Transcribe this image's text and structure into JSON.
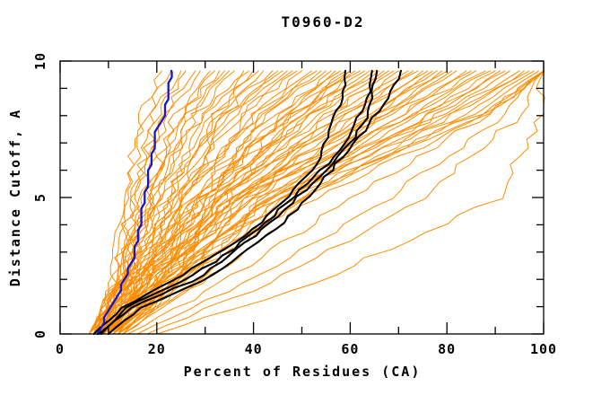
{
  "chart_data": {
    "type": "line",
    "title": "T0960-D2",
    "xlabel": "Percent of Residues (CA)",
    "ylabel": "Distance Cutoff, A",
    "xlim": [
      0,
      100
    ],
    "ylim": [
      0,
      10
    ],
    "x_major_ticks": [
      0,
      20,
      40,
      60,
      80,
      100
    ],
    "x_minor_ticks": [
      10,
      30,
      50,
      70,
      90
    ],
    "y_major_ticks": [
      0,
      5,
      10
    ],
    "y_minor_ticks": [
      1,
      2,
      3,
      4,
      6,
      7,
      8,
      9
    ],
    "grid": false,
    "legend": "none",
    "colors": {
      "model_orange": "#ff8c00",
      "reference_black": "#000000",
      "highlight_blue": "#1616cc",
      "axis": "#000000",
      "background": "#ffffff"
    },
    "curve_top_cutoff": 9.64,
    "orange_cutoffs": [
      0,
      2,
      5,
      8,
      9.64
    ],
    "orange_series": [
      [
        8,
        11,
        13,
        17,
        21
      ],
      [
        7,
        11,
        14,
        18,
        23
      ],
      [
        8,
        12,
        15,
        19,
        25
      ],
      [
        6,
        11,
        15,
        20,
        26
      ],
      [
        9,
        13,
        17,
        21,
        28
      ],
      [
        7,
        12,
        16,
        22,
        29
      ],
      [
        8,
        13,
        18,
        24,
        31
      ],
      [
        10,
        14,
        19,
        25,
        32
      ],
      [
        6,
        12,
        17,
        25,
        33
      ],
      [
        9,
        14,
        20,
        27,
        34
      ],
      [
        7,
        13,
        19,
        26,
        35
      ],
      [
        8,
        13,
        20,
        28,
        36
      ],
      [
        10,
        15,
        22,
        30,
        38
      ],
      [
        6,
        12,
        19,
        29,
        39
      ],
      [
        9,
        16,
        23,
        32,
        40
      ],
      [
        7,
        13,
        21,
        31,
        41
      ],
      [
        11,
        17,
        25,
        34,
        42
      ],
      [
        8,
        14,
        22,
        33,
        44
      ],
      [
        10,
        18,
        26,
        35,
        45
      ],
      [
        6,
        13,
        21,
        34,
        46
      ],
      [
        9,
        15,
        24,
        36,
        47
      ],
      [
        12,
        19,
        28,
        38,
        48
      ],
      [
        7,
        14,
        23,
        37,
        49
      ],
      [
        10,
        17,
        26,
        39,
        50
      ],
      [
        8,
        15,
        25,
        40,
        52
      ],
      [
        11,
        20,
        30,
        42,
        53
      ],
      [
        6,
        13,
        24,
        41,
        54
      ],
      [
        9,
        18,
        28,
        43,
        55
      ],
      [
        12,
        21,
        31,
        45,
        56
      ],
      [
        7,
        15,
        26,
        44,
        57
      ],
      [
        10,
        19,
        30,
        46,
        58
      ],
      [
        8,
        16,
        28,
        47,
        59
      ],
      [
        11,
        22,
        33,
        48,
        60
      ],
      [
        9,
        17,
        29,
        48,
        60
      ],
      [
        13,
        23,
        34,
        49,
        61
      ],
      [
        7,
        14,
        27,
        48,
        62
      ],
      [
        10,
        20,
        32,
        50,
        63
      ],
      [
        8,
        16,
        30,
        51,
        64
      ],
      [
        12,
        22,
        35,
        52,
        65
      ],
      [
        6,
        15,
        29,
        52,
        66
      ],
      [
        9,
        19,
        33,
        54,
        67
      ],
      [
        11,
        23,
        37,
        55,
        68
      ],
      [
        7,
        16,
        31,
        55,
        69
      ],
      [
        10,
        21,
        36,
        57,
        70
      ],
      [
        8,
        18,
        34,
        58,
        72
      ],
      [
        12,
        24,
        39,
        59,
        73
      ],
      [
        9,
        17,
        33,
        59,
        74
      ],
      [
        11,
        22,
        38,
        61,
        75
      ],
      [
        7,
        15,
        32,
        61,
        76
      ],
      [
        10,
        20,
        37,
        63,
        77
      ],
      [
        13,
        25,
        41,
        64,
        78
      ],
      [
        8,
        18,
        36,
        64,
        79
      ],
      [
        11,
        23,
        40,
        66,
        80
      ],
      [
        9,
        19,
        37,
        66,
        81
      ],
      [
        12,
        26,
        43,
        68,
        82
      ],
      [
        8,
        17,
        36,
        68,
        84
      ],
      [
        11,
        24,
        42,
        70,
        85
      ],
      [
        9,
        20,
        39,
        71,
        86
      ],
      [
        12,
        27,
        46,
        72,
        88
      ],
      [
        7,
        18,
        38,
        72,
        89
      ],
      [
        10,
        23,
        44,
        74,
        90
      ],
      [
        13,
        29,
        48,
        76,
        91
      ],
      [
        8,
        19,
        41,
        76,
        92
      ],
      [
        11,
        25,
        46,
        78,
        93
      ],
      [
        9,
        21,
        43,
        79,
        95
      ],
      [
        12,
        28,
        50,
        81,
        96
      ],
      [
        10,
        22,
        45,
        81,
        97
      ],
      [
        8,
        20,
        44,
        83,
        98
      ],
      [
        11,
        26,
        49,
        85,
        99
      ],
      [
        9,
        23,
        47,
        86,
        100
      ],
      [
        13,
        30,
        53,
        88,
        100
      ],
      [
        10,
        24,
        50,
        87,
        100
      ],
      [
        14,
        35,
        60,
        88,
        100
      ],
      [
        16,
        40,
        68,
        92,
        100
      ],
      [
        18,
        45,
        75,
        95,
        100
      ],
      [
        20,
        54,
        91,
        99,
        100
      ]
    ],
    "black_cutoffs": [
      0,
      1,
      2,
      3,
      4,
      5,
      6,
      7,
      8,
      9,
      9.64
    ],
    "black_series": [
      [
        7,
        13,
        24,
        33,
        41,
        47,
        52,
        55,
        57,
        58.5,
        59
      ],
      [
        8,
        15,
        28,
        36,
        43,
        49,
        55,
        60,
        63.5,
        65,
        65.5
      ],
      [
        10,
        17,
        30,
        38,
        46,
        51,
        56,
        61,
        65,
        69,
        70.5
      ],
      [
        8.5,
        14,
        26,
        35,
        42,
        48,
        54,
        59,
        62,
        64,
        64.5
      ]
    ],
    "blue_series": {
      "cutoffs": [
        0,
        0.5,
        1,
        1.5,
        2,
        2.5,
        3,
        4,
        5,
        6,
        7,
        7.5,
        8,
        9,
        9.64
      ],
      "x": [
        8,
        9,
        10.5,
        12,
        13.5,
        14.5,
        15.5,
        16.5,
        17.5,
        18.5,
        19.5,
        20,
        21.5,
        22.5,
        23
      ]
    }
  }
}
